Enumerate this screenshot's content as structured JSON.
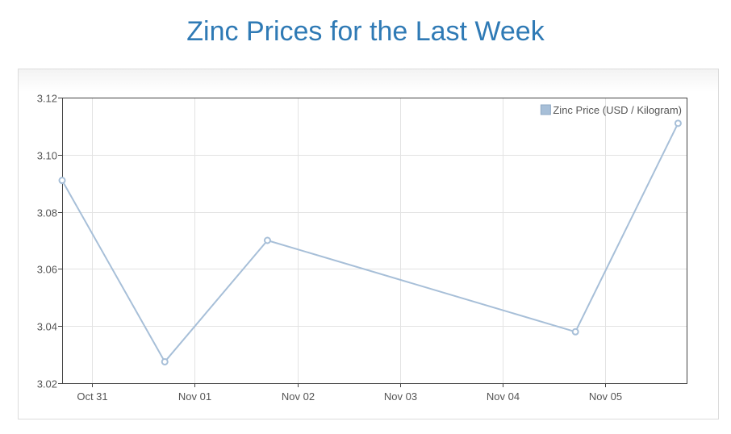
{
  "page": {
    "title": "Zinc Prices for the Last Week"
  },
  "colors": {
    "title": "#2f7ab5",
    "series": "#a7bfd8",
    "grid": "#e3e3e3",
    "axis": "#444444"
  },
  "chart_data": {
    "type": "line",
    "title": "Zinc Prices for the Last Week",
    "xlabel": "",
    "ylabel": "",
    "x_axis_type": "date",
    "xlim": [
      "2023-10-30T17:00",
      "2023-11-05T19:00"
    ],
    "ylim": [
      3.02,
      3.12
    ],
    "y_ticks": [
      3.02,
      3.04,
      3.06,
      3.08,
      3.1,
      3.12
    ],
    "y_tick_labels": [
      "3.02",
      "3.04",
      "3.06",
      "3.08",
      "3.10",
      "3.12"
    ],
    "x_ticks": [
      "2023-10-31T00:00",
      "2023-11-01T00:00",
      "2023-11-02T00:00",
      "2023-11-03T00:00",
      "2023-11-04T00:00",
      "2023-11-05T00:00"
    ],
    "x_tick_labels": [
      "Oct 31",
      "Nov 01",
      "Nov 02",
      "Nov 03",
      "Nov 04",
      "Nov 05"
    ],
    "grid": true,
    "legend": {
      "position": "top-right"
    },
    "series": [
      {
        "name": "Zinc Price (USD / Kilogram)",
        "color": "#a7bfd8",
        "points": [
          {
            "x": "2023-10-30T17:00",
            "y": 3.091
          },
          {
            "x": "2023-10-31T17:00",
            "y": 3.0275
          },
          {
            "x": "2023-11-01T17:00",
            "y": 3.07
          },
          {
            "x": "2023-11-04T17:00",
            "y": 3.038
          },
          {
            "x": "2023-11-05T17:00",
            "y": 3.111
          }
        ]
      }
    ]
  }
}
